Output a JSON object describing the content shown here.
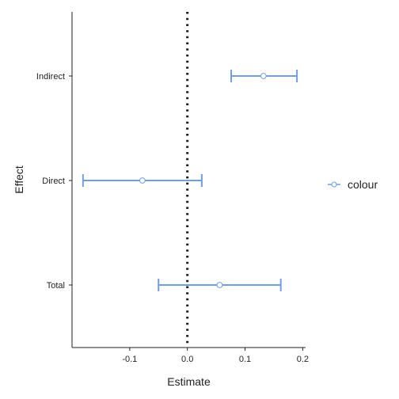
{
  "chart_data": {
    "type": "errorbar",
    "orientation": "horizontal",
    "xlabel": "Estimate",
    "ylabel": "Effect",
    "xlim": [
      -0.2,
      0.205
    ],
    "x_ticks": [
      -0.1,
      0.0,
      0.1,
      0.2
    ],
    "x_tick_labels": [
      "-0.1",
      "0.0",
      "0.1",
      "0.2"
    ],
    "categories": [
      "Indirect",
      "Direct",
      "Total"
    ],
    "reference_line": {
      "x": 0.0,
      "style": "dotted",
      "color": "#1a1a1a"
    },
    "series": [
      {
        "name": "colour",
        "color": "#6f9ee3",
        "points": [
          {
            "category": "Indirect",
            "estimate": 0.132,
            "lower": 0.076,
            "upper": 0.19
          },
          {
            "category": "Direct",
            "estimate": -0.078,
            "lower": -0.181,
            "upper": 0.025
          },
          {
            "category": "Total",
            "estimate": 0.056,
            "lower": -0.05,
            "upper": 0.162
          }
        ]
      }
    ],
    "legend": {
      "position": "right",
      "label": "colour"
    },
    "grid": false
  }
}
